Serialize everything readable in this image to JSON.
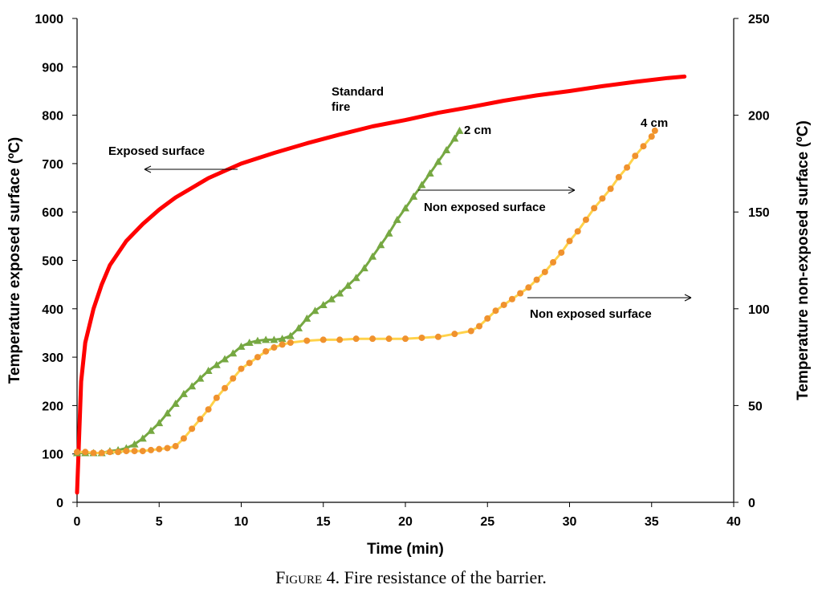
{
  "figure": {
    "caption_label": "Figure",
    "caption_rest": " 4. Fire resistance of the barrier."
  },
  "chart_data": {
    "type": "line",
    "xlabel": "Time (min)",
    "ylabel": "Temperature exposed surface (ºC)",
    "y2label": "Temperature non-exposed surface (ºC)",
    "xlim": [
      0,
      40
    ],
    "ylim": [
      0,
      1000
    ],
    "y2lim": [
      0,
      250
    ],
    "xticks": [
      0,
      5,
      10,
      15,
      20,
      25,
      30,
      35,
      40
    ],
    "yticks": [
      0,
      100,
      200,
      300,
      400,
      500,
      600,
      700,
      800,
      900,
      1000
    ],
    "y2ticks": [
      0,
      50,
      100,
      150,
      200,
      250
    ],
    "grid": false,
    "series": [
      {
        "name": "Standard fire",
        "axis": "left",
        "color": "#ff0000",
        "marker": "none",
        "x": [
          0,
          0.25,
          0.5,
          1,
          1.5,
          2,
          3,
          4,
          5,
          6,
          7,
          8,
          9,
          10,
          12,
          14,
          16,
          18,
          20,
          22,
          24,
          26,
          28,
          30,
          32,
          34,
          36,
          37
        ],
        "y": [
          20,
          250,
          330,
          400,
          450,
          490,
          540,
          575,
          605,
          630,
          650,
          670,
          685,
          700,
          722,
          742,
          760,
          777,
          790,
          805,
          817,
          830,
          841,
          850,
          860,
          869,
          877,
          880
        ]
      },
      {
        "name": "2 cm",
        "axis": "right",
        "color": "#76a842",
        "marker": "triangle",
        "x": [
          0,
          0.5,
          1,
          1.5,
          2,
          2.5,
          3,
          3.5,
          4,
          4.5,
          5,
          5.5,
          6,
          6.5,
          7,
          7.5,
          8,
          8.5,
          9,
          9.5,
          10,
          10.5,
          11,
          11.5,
          12,
          12.5,
          13,
          13.5,
          14,
          14.5,
          15,
          15.5,
          16,
          16.5,
          17,
          17.5,
          18,
          18.5,
          19,
          19.5,
          20,
          20.5,
          21,
          21.5,
          22,
          22.5,
          23,
          23.3
        ],
        "y": [
          25.5,
          25.5,
          25.5,
          25.5,
          26.5,
          27,
          28,
          30,
          33,
          37,
          41,
          46,
          51,
          56,
          60,
          64,
          68,
          71,
          74,
          77,
          80.5,
          82.5,
          83.5,
          84,
          84,
          84.5,
          86,
          90,
          95,
          99,
          102,
          105,
          108,
          112,
          116,
          121,
          127,
          133,
          139,
          146,
          152,
          158,
          164,
          170,
          176,
          182,
          188,
          192
        ]
      },
      {
        "name": "4 cm",
        "axis": "right",
        "color": "#f0922e",
        "line_color": "#ffd24a",
        "marker": "circle",
        "x": [
          0,
          0.5,
          1,
          1.5,
          2,
          2.5,
          3,
          3.5,
          4,
          4.5,
          5,
          5.5,
          6,
          6.5,
          7,
          7.5,
          8,
          8.5,
          9,
          9.5,
          10,
          10.5,
          11,
          11.5,
          12,
          12.5,
          13,
          14,
          15,
          16,
          17,
          18,
          19,
          20,
          21,
          22,
          23,
          24,
          24.5,
          25,
          25.5,
          26,
          26.5,
          27,
          27.5,
          28,
          28.5,
          29,
          29.5,
          30,
          30.5,
          31,
          31.5,
          32,
          32.5,
          33,
          33.5,
          34,
          34.5,
          35,
          35.2
        ],
        "y": [
          26,
          26,
          25.5,
          25.5,
          26,
          26,
          26.5,
          26.5,
          26.5,
          27,
          27.5,
          28,
          29,
          33,
          38,
          43,
          48,
          54,
          59,
          64,
          69,
          72,
          75,
          78,
          80,
          81.5,
          82.5,
          83.5,
          84,
          84,
          84.5,
          84.5,
          84.5,
          84.5,
          85,
          85.5,
          87,
          88.5,
          91,
          95,
          99,
          102,
          105,
          108,
          111,
          115,
          119,
          124,
          129,
          135,
          140,
          146,
          152,
          157,
          162,
          168,
          173,
          179,
          184,
          189,
          192
        ]
      }
    ],
    "annotations": {
      "exposed": "Exposed surface",
      "standard_1": "Standard",
      "standard_2": "fire",
      "label_2cm": "2 cm",
      "label_4cm": "4 cm",
      "non_exposed_1": "Non exposed surface",
      "non_exposed_2": "Non exposed surface"
    }
  }
}
